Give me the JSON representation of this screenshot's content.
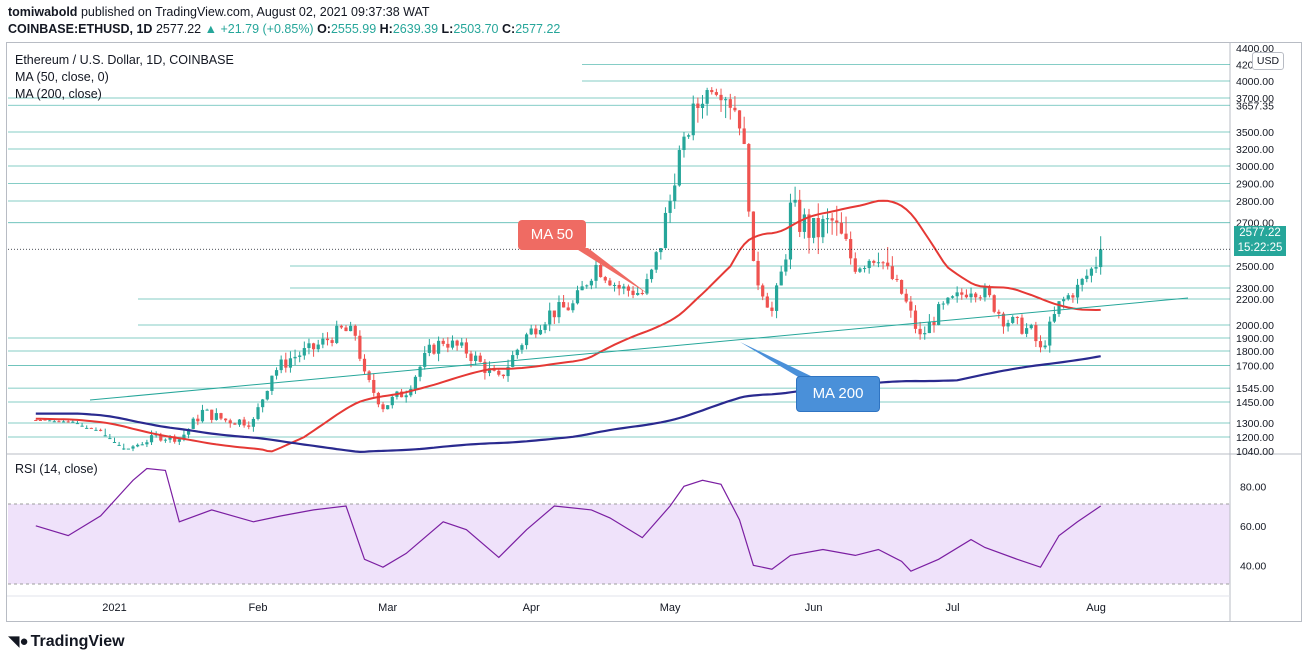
{
  "header": {
    "user": "tomiwabold",
    "published": "published on TradingView.com, August 02, 2021 09:37:38 WAT",
    "symbol": "COINBASE:ETHUSD, 1D",
    "last": "2577.22",
    "change": "▲ +21.79 (+0.85%)",
    "ohlc": {
      "o_label": "O:",
      "o": "2555.99",
      "h_label": "H:",
      "h": "2639.39",
      "l_label": "L:",
      "l": "2503.70",
      "c_label": "C:",
      "c": "2577.22"
    }
  },
  "legend": {
    "title": "Ethereum / U.S. Dollar, 1D, COINBASE",
    "ma50": "MA (50, close, 0)",
    "ma200": "MA (200, close)",
    "rsi": "RSI (14, close)"
  },
  "price_axis": {
    "currency": "USD",
    "current_price": "2577.22",
    "countdown": "15:22:25"
  },
  "callouts": {
    "ma50": "MA 50",
    "ma200": "MA 200"
  },
  "branding": {
    "name": "TradingView"
  },
  "colors": {
    "up": "#26a69a",
    "down": "#ef5350",
    "ma50": "#e53935",
    "ma200": "#2a2a8f",
    "rsi": "#7b1fa2",
    "rsi_band": "#efe2fa",
    "hline": "#26a69a",
    "ma200_callout": "#4a90d9",
    "ma50_callout": "#ef6b63"
  },
  "chart_data": [
    {
      "type": "candlestick",
      "title": "Ethereum / U.S. Dollar, 1D, COINBASE",
      "x_axis": {
        "ticks": [
          "2021",
          "Feb",
          "Mar",
          "Apr",
          "May",
          "Jun",
          "Jul",
          "Aug"
        ]
      },
      "y_axis": {
        "ticks": [
          "4400.00",
          "4200.00",
          "4000.00",
          "3700.00",
          "3657.35",
          "3500.00",
          "3200.00",
          "3000.00",
          "2900.00",
          "2800.00",
          "2700.00",
          "2500.00",
          "2300.00",
          "2200.00",
          "2000.00",
          "1900.00",
          "1800.00",
          "1700.00",
          "1545.00",
          "1450.00",
          "1300.00",
          "1200.00",
          "1040.00"
        ]
      },
      "series": [
        {
          "name": "ETHUSD close (approx.)",
          "points": [
            [
              "2020-12-15",
              590
            ],
            [
              "2020-12-22",
              610
            ],
            [
              "2020-12-29",
              735
            ],
            [
              "2021-01-05",
              1100
            ],
            [
              "2021-01-10",
              1200
            ],
            [
              "2021-01-15",
              1180
            ],
            [
              "2021-01-20",
              1380
            ],
            [
              "2021-01-25",
              1320
            ],
            [
              "2021-01-31",
              1310
            ],
            [
              "2021-02-04",
              1650
            ],
            [
              "2021-02-08",
              1750
            ],
            [
              "2021-02-13",
              1820
            ],
            [
              "2021-02-19",
              1960
            ],
            [
              "2021-02-22",
              1930
            ],
            [
              "2021-02-24",
              1620
            ],
            [
              "2021-02-28",
              1420
            ],
            [
              "2021-03-05",
              1530
            ],
            [
              "2021-03-10",
              1800
            ],
            [
              "2021-03-13",
              1880
            ],
            [
              "2021-03-18",
              1800
            ],
            [
              "2021-03-25",
              1600
            ],
            [
              "2021-03-31",
              1920
            ],
            [
              "2021-04-05",
              2090
            ],
            [
              "2021-04-10",
              2150
            ],
            [
              "2021-04-15",
              2500
            ],
            [
              "2021-04-20",
              2300
            ],
            [
              "2021-04-25",
              2250
            ],
            [
              "2021-05-01",
              2800
            ],
            [
              "2021-05-05",
              3500
            ],
            [
              "2021-05-10",
              3900
            ],
            [
              "2021-05-12",
              3800
            ],
            [
              "2021-05-16",
              3600
            ],
            [
              "2021-05-19",
              2450
            ],
            [
              "2021-05-23",
              2100
            ],
            [
              "2021-05-27",
              2750
            ],
            [
              "2021-06-01",
              2650
            ],
            [
              "2021-06-05",
              2700
            ],
            [
              "2021-06-10",
              2500
            ],
            [
              "2021-06-15",
              2580
            ],
            [
              "2021-06-20",
              2250
            ],
            [
              "2021-06-24",
              1900
            ],
            [
              "2021-06-28",
              2100
            ],
            [
              "2021-07-05",
              2300
            ],
            [
              "2021-07-08",
              2250
            ],
            [
              "2021-07-12",
              2050
            ],
            [
              "2021-07-18",
              1950
            ],
            [
              "2021-07-20",
              1800
            ],
            [
              "2021-07-24",
              2150
            ],
            [
              "2021-07-28",
              2300
            ],
            [
              "2021-08-02",
              2577.22
            ]
          ]
        }
      ],
      "annotations": [
        "MA 50",
        "MA 200"
      ]
    },
    {
      "type": "line",
      "title": "RSI (14, close)",
      "y_axis": {
        "ticks": [
          "80.00",
          "60.00",
          "40.00"
        ]
      },
      "band": [
        30,
        70
      ],
      "series": [
        {
          "name": "RSI (14, close)",
          "points": [
            [
              "2020-12-15",
              60
            ],
            [
              "2020-12-22",
              55
            ],
            [
              "2020-12-29",
              65
            ],
            [
              "2021-01-05",
              83
            ],
            [
              "2021-01-08",
              89
            ],
            [
              "2021-01-12",
              88
            ],
            [
              "2021-01-15",
              62
            ],
            [
              "2021-01-22",
              68
            ],
            [
              "2021-01-31",
              62
            ],
            [
              "2021-02-06",
              65
            ],
            [
              "2021-02-13",
              68
            ],
            [
              "2021-02-20",
              70
            ],
            [
              "2021-02-24",
              43
            ],
            [
              "2021-02-28",
              39
            ],
            [
              "2021-03-05",
              46
            ],
            [
              "2021-03-13",
              62
            ],
            [
              "2021-03-18",
              58
            ],
            [
              "2021-03-25",
              44
            ],
            [
              "2021-03-31",
              58
            ],
            [
              "2021-04-06",
              70
            ],
            [
              "2021-04-14",
              68
            ],
            [
              "2021-04-18",
              64
            ],
            [
              "2021-04-25",
              54
            ],
            [
              "2021-05-01",
              70
            ],
            [
              "2021-05-04",
              80
            ],
            [
              "2021-05-08",
              83
            ],
            [
              "2021-05-12",
              81
            ],
            [
              "2021-05-16",
              63
            ],
            [
              "2021-05-19",
              40
            ],
            [
              "2021-05-23",
              38
            ],
            [
              "2021-05-27",
              45
            ],
            [
              "2021-06-03",
              48
            ],
            [
              "2021-06-10",
              45
            ],
            [
              "2021-06-15",
              48
            ],
            [
              "2021-06-20",
              42
            ],
            [
              "2021-06-22",
              37
            ],
            [
              "2021-06-28",
              43
            ],
            [
              "2021-07-05",
              53
            ],
            [
              "2021-07-08",
              49
            ],
            [
              "2021-07-15",
              43
            ],
            [
              "2021-07-20",
              39
            ],
            [
              "2021-07-24",
              55
            ],
            [
              "2021-07-28",
              62
            ],
            [
              "2021-08-02",
              70
            ]
          ]
        }
      ]
    }
  ]
}
